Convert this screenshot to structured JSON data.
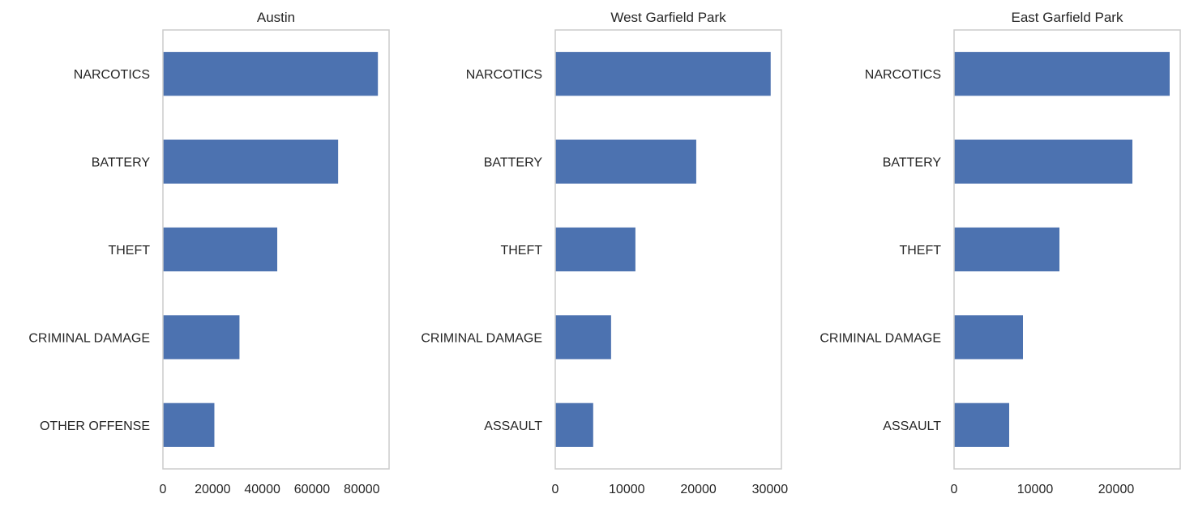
{
  "chart_data": [
    {
      "type": "bar",
      "orientation": "horizontal",
      "title": "Austin",
      "categories": [
        "NARCOTICS",
        "BATTERY",
        "THEFT",
        "CRIMINAL DAMAGE",
        "OTHER OFFENSE"
      ],
      "values": [
        86500,
        70500,
        46000,
        30800,
        20700
      ],
      "xticks": [
        0,
        20000,
        40000,
        60000,
        80000
      ],
      "xlim": [
        0,
        91000
      ],
      "grid": false,
      "bar_color": "#4c72b0"
    },
    {
      "type": "bar",
      "orientation": "horizontal",
      "title": "West Garfield Park",
      "categories": [
        "NARCOTICS",
        "BATTERY",
        "THEFT",
        "CRIMINAL DAMAGE",
        "ASSAULT"
      ],
      "values": [
        30100,
        19700,
        11200,
        7800,
        5300
      ],
      "xticks": [
        0,
        10000,
        20000,
        30000
      ],
      "xlim": [
        0,
        31600
      ],
      "grid": false,
      "bar_color": "#4c72b0"
    },
    {
      "type": "bar",
      "orientation": "horizontal",
      "title": "East Garfield Park",
      "categories": [
        "NARCOTICS",
        "BATTERY",
        "THEFT",
        "CRIMINAL DAMAGE",
        "ASSAULT"
      ],
      "values": [
        26600,
        22000,
        13000,
        8500,
        6800
      ],
      "xticks": [
        0,
        10000,
        20000
      ],
      "xlim": [
        0,
        27900
      ],
      "grid": false,
      "bar_color": "#4c72b0"
    }
  ]
}
